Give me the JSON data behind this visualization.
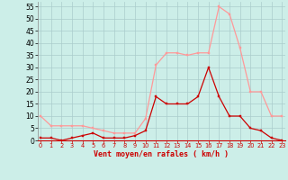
{
  "x": [
    0,
    1,
    2,
    3,
    4,
    5,
    6,
    7,
    8,
    9,
    10,
    11,
    12,
    13,
    14,
    15,
    16,
    17,
    18,
    19,
    20,
    21,
    22,
    23
  ],
  "vent_moyen": [
    1,
    1,
    0,
    1,
    2,
    3,
    1,
    1,
    1,
    2,
    4,
    18,
    15,
    15,
    15,
    18,
    30,
    18,
    10,
    10,
    5,
    4,
    1,
    0
  ],
  "vent_rafales": [
    10,
    6,
    6,
    6,
    6,
    5,
    4,
    3,
    3,
    3,
    9,
    31,
    36,
    36,
    35,
    36,
    36,
    55,
    52,
    38,
    20,
    20,
    10,
    10
  ],
  "xlabel": "Vent moyen/en rafales ( km/h )",
  "xlim": [
    -0.3,
    23.3
  ],
  "ylim": [
    0,
    57
  ],
  "yticks": [
    0,
    5,
    10,
    15,
    20,
    25,
    30,
    35,
    40,
    45,
    50,
    55
  ],
  "xticks": [
    0,
    1,
    2,
    3,
    4,
    5,
    6,
    7,
    8,
    9,
    10,
    11,
    12,
    13,
    14,
    15,
    16,
    17,
    18,
    19,
    20,
    21,
    22,
    23
  ],
  "bg_color": "#cceee8",
  "line_moyen_color": "#cc0000",
  "line_rafales_color": "#ff9999",
  "grid_color": "#aacccc",
  "xlabel_color": "#cc0000",
  "ytick_fontsize": 5.5,
  "xtick_fontsize": 4.8,
  "xlabel_fontsize": 6.0
}
